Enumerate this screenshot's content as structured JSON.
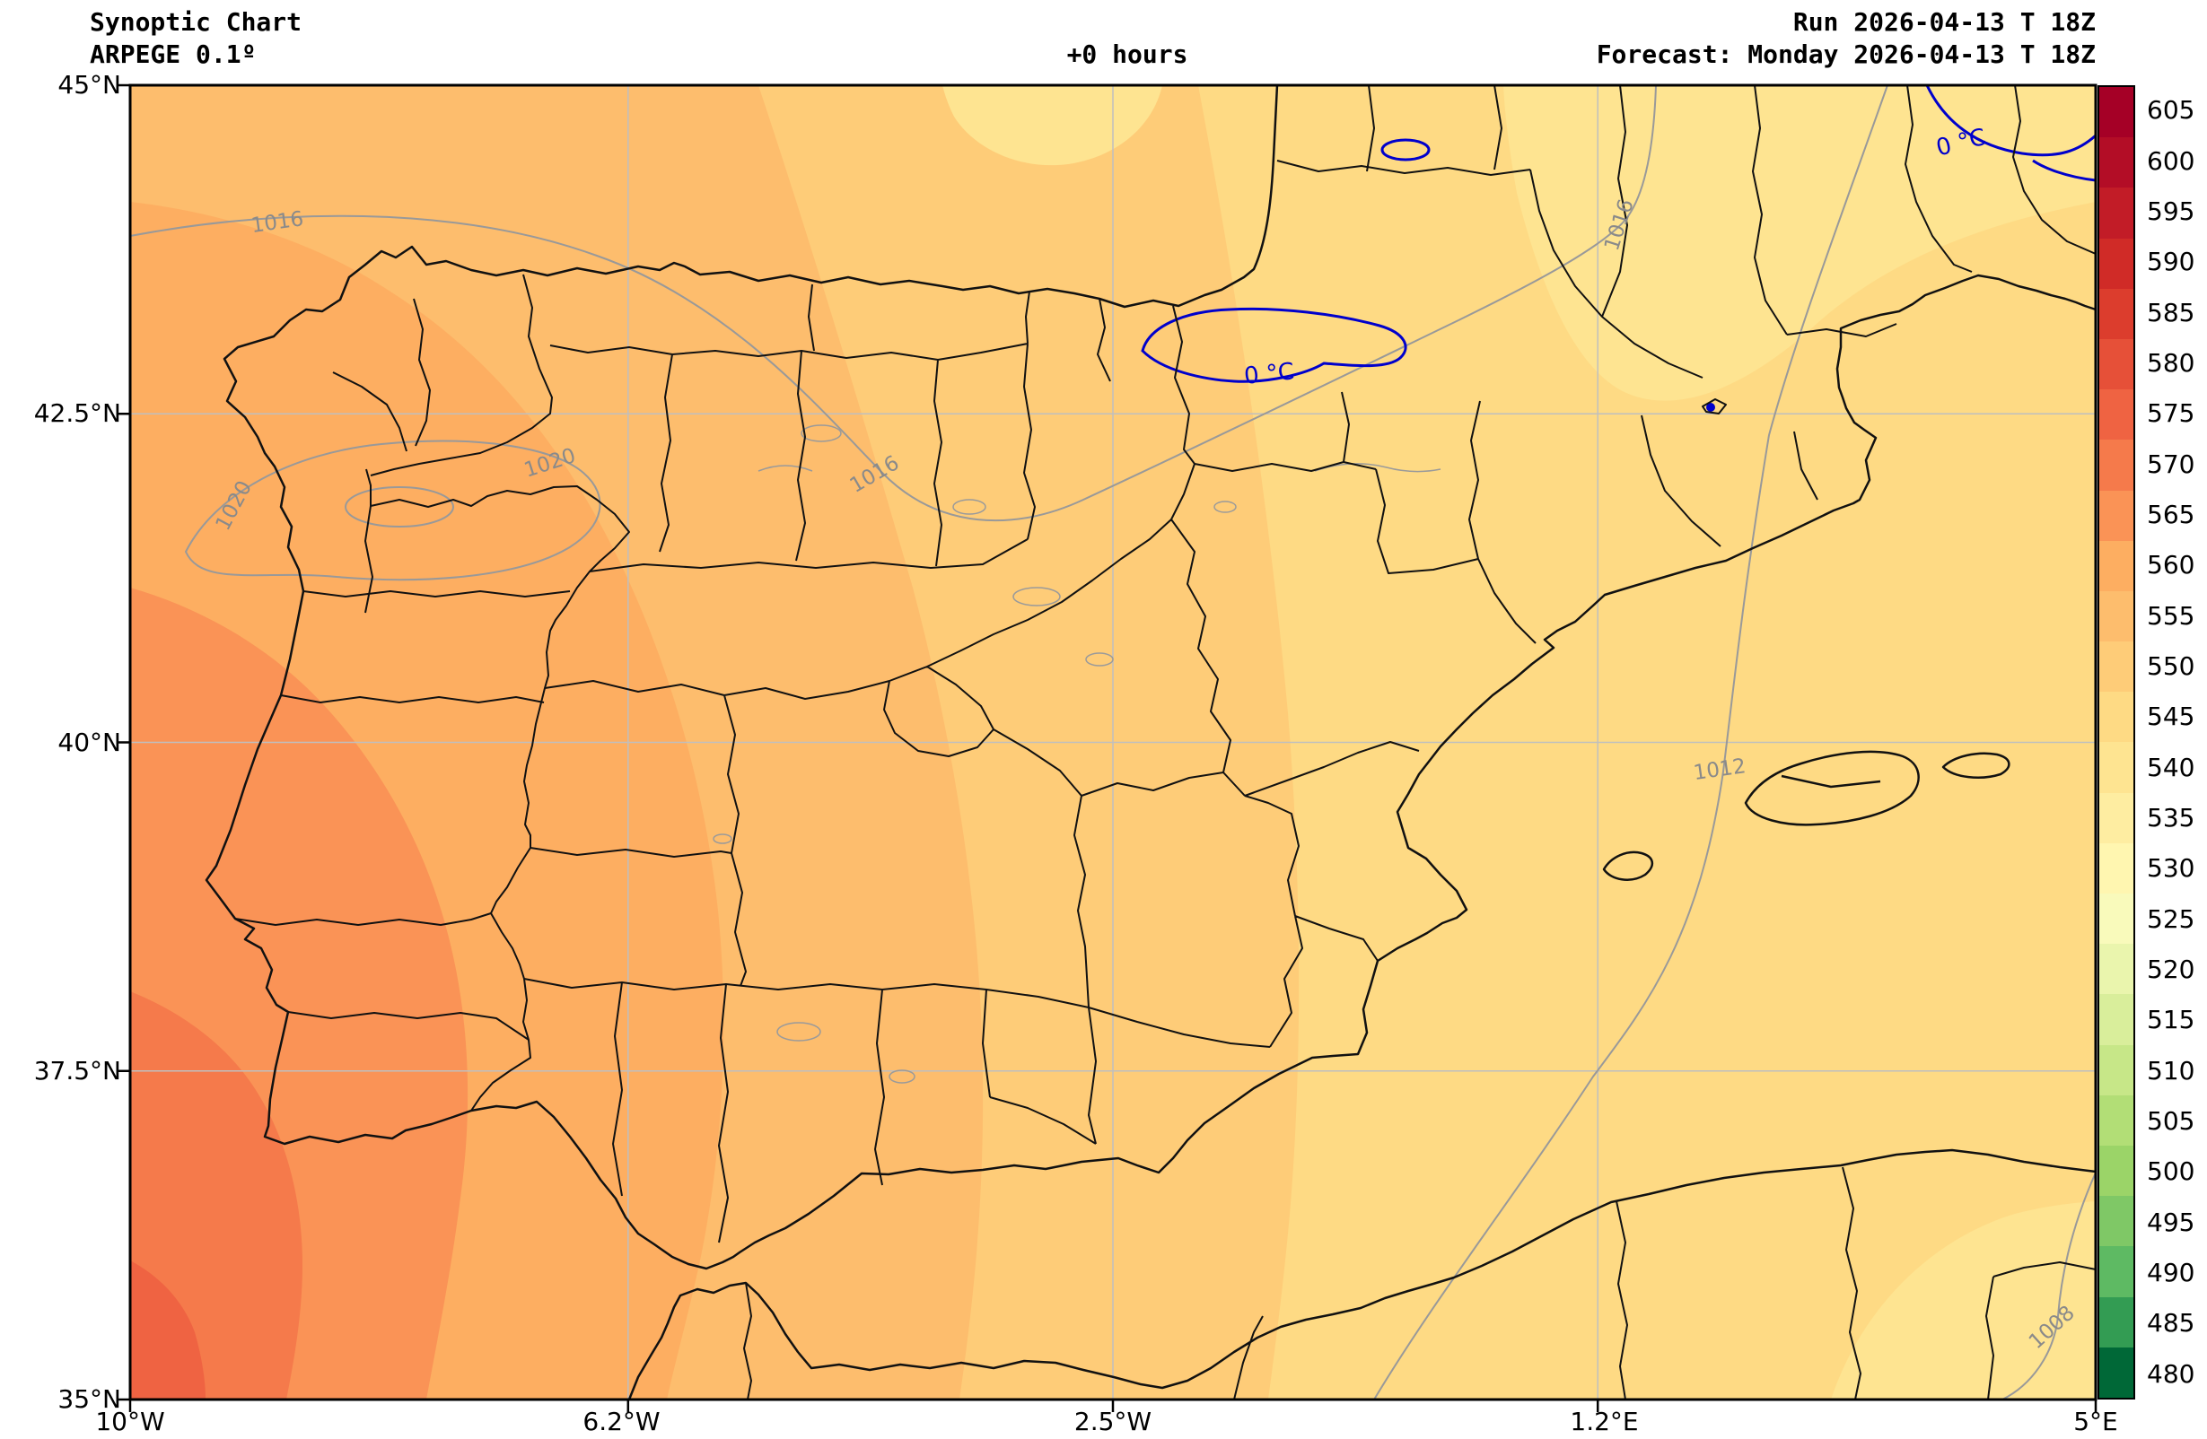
{
  "header": {
    "title": "Synoptic Chart",
    "model": "ARPEGE 0.1º",
    "lead": "+0 hours",
    "run": "Run 2026-04-13 T 18Z",
    "forecast": "Forecast: Monday 2026-04-13 T 18Z"
  },
  "axes": {
    "x_ticks": [
      "10°W",
      "6.2°W",
      "2.5°W",
      "1.2°E",
      "5°E"
    ],
    "y_ticks": [
      "45°N",
      "42.5°N",
      "40°N",
      "37.5°N",
      "35°N"
    ]
  },
  "colorbar": {
    "values": [
      605,
      600,
      595,
      590,
      585,
      580,
      575,
      570,
      565,
      560,
      555,
      550,
      545,
      540,
      535,
      530,
      525,
      520,
      515,
      510,
      505,
      500,
      495,
      490,
      485,
      480
    ],
    "colors": [
      "#a50026",
      "#b30d26",
      "#c21c27",
      "#d02b27",
      "#dc3d2d",
      "#e65038",
      "#ef6342",
      "#f57a4b",
      "#fa9356",
      "#fdae61",
      "#fdbd6d",
      "#fecc78",
      "#feda84",
      "#fee491",
      "#feeda1",
      "#fff6b0",
      "#f9fabb",
      "#eaf5ad",
      "#d9ee9b",
      "#c7e788",
      "#b2de76",
      "#9bd468",
      "#7fc866",
      "#5eba63",
      "#339c53",
      "#006837"
    ]
  },
  "contour_labels": {
    "iso_1020": "1020",
    "iso_1016": "1016",
    "iso_1012": "1012",
    "iso_1008": "1008",
    "freezing": "0 °C"
  },
  "map_colors": {
    "fill_550": "#feda84",
    "fill_555": "#fecc78",
    "fill_560": "#fdbd6d",
    "fill_565": "#fdae61",
    "fill_570": "#fa9356",
    "fill_575": "#f57a4b",
    "fill_580": "#ef6342",
    "fill_545": "#fee491",
    "grid": "#bfbfbf",
    "orography": "#9a9a9a",
    "isobar": "#999999",
    "isobar_label": "#8a8a8a",
    "freezing_line": "#0000cc",
    "coastline": "#111111",
    "frame": "#000000"
  },
  "chart_data": {
    "type": "heatmap",
    "title": "Synoptic Chart",
    "model": "ARPEGE 0.1º",
    "run": "Run 2026-04-13 T 18Z",
    "forecast": "Forecast: Monday 2026-04-13 T 18Z",
    "lead_time": "+0 hours",
    "area_shown": "Iberian Peninsula, southern France, Balearic Islands, north-west Africa",
    "x_axis": {
      "ticks": [
        "10°W",
        "6.2°W",
        "2.5°W",
        "1.2°E",
        "5°E"
      ],
      "range": [
        "10°W",
        "5°E"
      ]
    },
    "y_axis": {
      "ticks": [
        "45°N",
        "42.5°N",
        "40°N",
        "37.5°N",
        "35°N"
      ],
      "range": [
        "35°N",
        "45°N"
      ]
    },
    "colorbar_ticks": [
      480,
      485,
      490,
      495,
      500,
      505,
      510,
      515,
      520,
      525,
      530,
      535,
      540,
      545,
      550,
      555,
      560,
      565,
      570,
      575,
      580,
      585,
      590,
      595,
      600,
      605
    ],
    "shaded_field_visible_range": [
      540,
      580
    ],
    "isobar_labels_hpa": [
      1008,
      1012,
      1016,
      1020
    ],
    "isotherm_label": "0 °C",
    "legend_position": "right-vertical-colorbar",
    "grid": true
  }
}
